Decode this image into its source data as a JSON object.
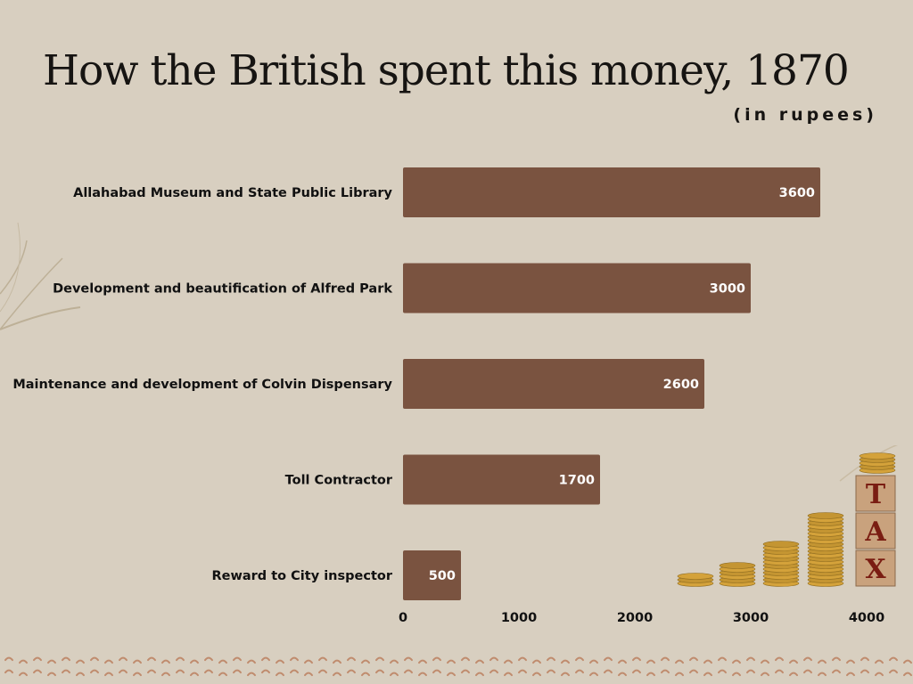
{
  "chart_data": {
    "type": "bar",
    "orientation": "horizontal",
    "title": "How the British spent this money, 1870",
    "subtitle": "(in rupees)",
    "categories": [
      "Allahabad Museum and State Public Library",
      "Development and beautification of Alfred Park",
      "Maintenance and development of Colvin Dispensary",
      "Toll Contractor",
      "Reward to City inspector"
    ],
    "values": [
      3600,
      3000,
      2600,
      1700,
      500
    ],
    "xlim": [
      0,
      4000
    ],
    "xticks": [
      0,
      1000,
      2000,
      3000,
      4000
    ],
    "grid": false,
    "bar_color": "#7a5340",
    "label_color": "#ffffff"
  },
  "decoration": {
    "tax_letters": [
      "T",
      "A",
      "X"
    ],
    "tax_letter_color": "#7a1d12",
    "coin_color": "#d4a23a"
  }
}
